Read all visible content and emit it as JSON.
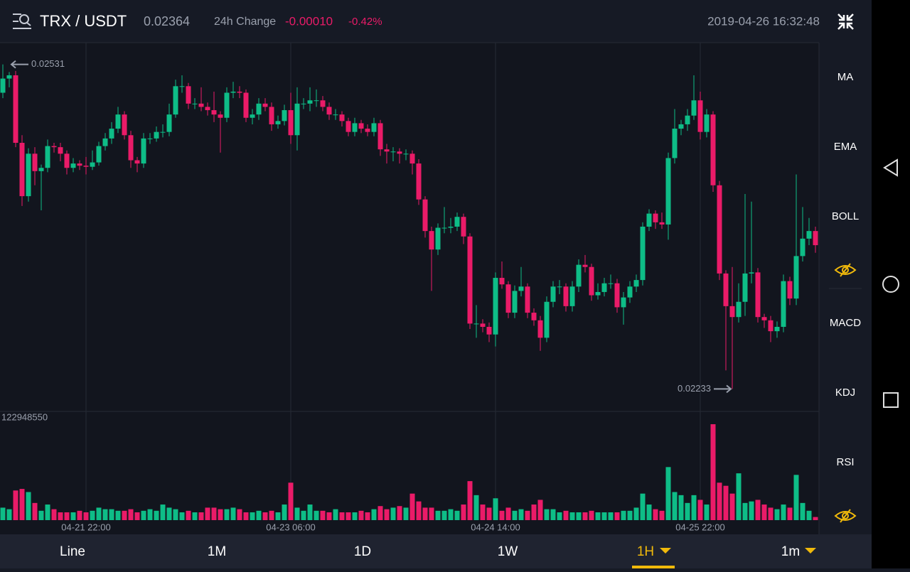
{
  "header": {
    "pair": "TRX / USDT",
    "price": "0.02364",
    "change_label": "24h Change",
    "change": "-0.00010",
    "change_pct": "-0.42%",
    "datetime": "2019-04-26 16:32:48"
  },
  "indicators": [
    "MA",
    "EMA",
    "BOLL",
    "MACD",
    "KDJ",
    "RSI"
  ],
  "timeframes": [
    "Line",
    "1M",
    "1D",
    "1W",
    "1H",
    "1m"
  ],
  "chart_data": {
    "type": "candlestick",
    "up_color": "#0ebd87",
    "down_color": "#ea1b68",
    "ylim": [
      0.02213,
      0.02551
    ],
    "volume_ylim": [
      0,
      138431000
    ],
    "high_marker": 0.02531,
    "low_marker": 0.02233,
    "categories": [
      null,
      null,
      null,
      null,
      null,
      null,
      null,
      null,
      null,
      null,
      null,
      null,
      null,
      "04-21 22:00",
      null,
      null,
      null,
      null,
      null,
      null,
      null,
      null,
      null,
      null,
      null,
      null,
      null,
      null,
      null,
      null,
      null,
      null,
      null,
      null,
      null,
      null,
      null,
      null,
      null,
      null,
      null,
      null,
      null,
      null,
      null,
      "04-23 06:00",
      null,
      null,
      null,
      null,
      null,
      null,
      null,
      null,
      null,
      null,
      null,
      null,
      null,
      null,
      null,
      null,
      null,
      null,
      null,
      null,
      null,
      null,
      null,
      null,
      null,
      null,
      null,
      null,
      null,
      null,
      null,
      "04-24 14:00",
      null,
      null,
      null,
      null,
      null,
      null,
      null,
      null,
      null,
      null,
      null,
      null,
      null,
      null,
      null,
      null,
      null,
      null,
      null,
      null,
      null,
      null,
      null,
      null,
      null,
      null,
      null,
      null,
      null,
      null,
      null,
      "04-25 22:00",
      null,
      null,
      null,
      null,
      null,
      null,
      null,
      null,
      null,
      null,
      null,
      null,
      null,
      null,
      null,
      null,
      null,
      null
    ],
    "ohlc": [
      [
        0.02505,
        0.02531,
        0.025,
        0.02518
      ],
      [
        0.02518,
        0.02524,
        0.0251,
        0.02521
      ],
      [
        0.02521,
        0.02525,
        0.02455,
        0.02459
      ],
      [
        0.02459,
        0.02466,
        0.02401,
        0.0241
      ],
      [
        0.0241,
        0.02454,
        0.02405,
        0.02449
      ],
      [
        0.02449,
        0.02455,
        0.0242,
        0.02433
      ],
      [
        0.02433,
        0.02439,
        0.02397,
        0.02436
      ],
      [
        0.02436,
        0.02462,
        0.02432,
        0.02456
      ],
      [
        0.02456,
        0.02459,
        0.0245,
        0.02455
      ],
      [
        0.02455,
        0.02459,
        0.02442,
        0.02449
      ],
      [
        0.02449,
        0.02452,
        0.0243,
        0.02436
      ],
      [
        0.02436,
        0.02445,
        0.02432,
        0.0244
      ],
      [
        0.0244,
        0.02443,
        0.02434,
        0.02438
      ],
      [
        0.02438,
        0.02446,
        0.0243,
        0.02437
      ],
      [
        0.02437,
        0.02452,
        0.02434,
        0.02441
      ],
      [
        0.02441,
        0.0246,
        0.02438,
        0.02456
      ],
      [
        0.02456,
        0.02468,
        0.02452,
        0.02463
      ],
      [
        0.02463,
        0.02478,
        0.02458,
        0.02472
      ],
      [
        0.02472,
        0.02492,
        0.02468,
        0.02485
      ],
      [
        0.02485,
        0.02488,
        0.02462,
        0.02466
      ],
      [
        0.02466,
        0.0247,
        0.02436,
        0.02443
      ],
      [
        0.02443,
        0.02446,
        0.02432,
        0.0244
      ],
      [
        0.0244,
        0.02468,
        0.02436,
        0.02463
      ],
      [
        0.02463,
        0.02468,
        0.02458,
        0.02463
      ],
      [
        0.02463,
        0.02474,
        0.0246,
        0.02469
      ],
      [
        0.02469,
        0.02476,
        0.02464,
        0.02469
      ],
      [
        0.02469,
        0.02495,
        0.02465,
        0.02485
      ],
      [
        0.02485,
        0.02517,
        0.02482,
        0.02511
      ],
      [
        0.02511,
        0.02521,
        0.02505,
        0.02511
      ],
      [
        0.02511,
        0.02514,
        0.0249,
        0.02495
      ],
      [
        0.02495,
        0.025,
        0.0249,
        0.02495
      ],
      [
        0.02495,
        0.0251,
        0.02488,
        0.02492
      ],
      [
        0.02492,
        0.02496,
        0.02484,
        0.02489
      ],
      [
        0.02489,
        0.02506,
        0.02478,
        0.02485
      ],
      [
        0.02485,
        0.02488,
        0.0245,
        0.02482
      ],
      [
        0.02482,
        0.0251,
        0.02478,
        0.02505
      ],
      [
        0.02505,
        0.02515,
        0.025,
        0.02506
      ],
      [
        0.02506,
        0.02511,
        0.025,
        0.02505
      ],
      [
        0.02505,
        0.02508,
        0.02478,
        0.02482
      ],
      [
        0.02482,
        0.0249,
        0.02476,
        0.02485
      ],
      [
        0.02485,
        0.025,
        0.0248,
        0.02495
      ],
      [
        0.02495,
        0.025,
        0.02488,
        0.02492
      ],
      [
        0.02492,
        0.02496,
        0.0247,
        0.02476
      ],
      [
        0.02476,
        0.02484,
        0.02472,
        0.02479
      ],
      [
        0.02479,
        0.02494,
        0.02475,
        0.02489
      ],
      [
        0.02489,
        0.02505,
        0.02458,
        0.02466
      ],
      [
        0.02466,
        0.0251,
        0.02452,
        0.02495
      ],
      [
        0.02495,
        0.025,
        0.0249,
        0.02495
      ],
      [
        0.02495,
        0.0251,
        0.02488,
        0.02498
      ],
      [
        0.02498,
        0.02508,
        0.02492,
        0.02498
      ],
      [
        0.02498,
        0.02502,
        0.02488,
        0.02492
      ],
      [
        0.02492,
        0.02496,
        0.0248,
        0.02485
      ],
      [
        0.02485,
        0.0249,
        0.0248,
        0.02485
      ],
      [
        0.02485,
        0.02488,
        0.02474,
        0.02479
      ],
      [
        0.02479,
        0.02482,
        0.02465,
        0.02469
      ],
      [
        0.02469,
        0.02482,
        0.02465,
        0.02477
      ],
      [
        0.02477,
        0.0248,
        0.02468,
        0.02472
      ],
      [
        0.02472,
        0.02476,
        0.02465,
        0.02469
      ],
      [
        0.02469,
        0.02482,
        0.02465,
        0.02477
      ],
      [
        0.02477,
        0.0248,
        0.02447,
        0.02453
      ],
      [
        0.02453,
        0.02458,
        0.0244,
        0.02451
      ],
      [
        0.02451,
        0.02455,
        0.02442,
        0.02451
      ],
      [
        0.02451,
        0.02454,
        0.0244,
        0.02449
      ],
      [
        0.02449,
        0.02453,
        0.02443,
        0.02449
      ],
      [
        0.02449,
        0.02452,
        0.0243,
        0.0244
      ],
      [
        0.0244,
        0.02444,
        0.02402,
        0.02407
      ],
      [
        0.02407,
        0.0241,
        0.02372,
        0.02378
      ],
      [
        0.02378,
        0.02382,
        0.02323,
        0.02361
      ],
      [
        0.02361,
        0.02385,
        0.02356,
        0.02381
      ],
      [
        0.02381,
        0.024,
        0.02376,
        0.02381
      ],
      [
        0.02381,
        0.0239,
        0.02376,
        0.02382
      ],
      [
        0.02382,
        0.02395,
        0.02378,
        0.02391
      ],
      [
        0.02391,
        0.02394,
        0.02366,
        0.02373
      ],
      [
        0.02373,
        0.02376,
        0.02288,
        0.02293
      ],
      [
        0.02293,
        0.0231,
        0.0228,
        0.02293
      ],
      [
        0.02293,
        0.02297,
        0.02285,
        0.0229
      ],
      [
        0.0229,
        0.02294,
        0.02276,
        0.02283
      ],
      [
        0.02283,
        0.0234,
        0.02272,
        0.02335
      ],
      [
        0.02335,
        0.0235,
        0.02325,
        0.02329
      ],
      [
        0.02329,
        0.02332,
        0.02298,
        0.02303
      ],
      [
        0.02303,
        0.02328,
        0.02298,
        0.02323
      ],
      [
        0.02323,
        0.02345,
        0.02318,
        0.02327
      ],
      [
        0.02327,
        0.0233,
        0.02298,
        0.02303
      ],
      [
        0.02303,
        0.02307,
        0.02291,
        0.02296
      ],
      [
        0.02296,
        0.023,
        0.02268,
        0.0228
      ],
      [
        0.0228,
        0.02318,
        0.02276,
        0.02313
      ],
      [
        0.02313,
        0.02332,
        0.02308,
        0.02327
      ],
      [
        0.02327,
        0.02333,
        0.0232,
        0.02327
      ],
      [
        0.02327,
        0.0233,
        0.02304,
        0.02309
      ],
      [
        0.02309,
        0.02332,
        0.02304,
        0.02327
      ],
      [
        0.02327,
        0.02352,
        0.02322,
        0.02347
      ],
      [
        0.02347,
        0.02356,
        0.0234,
        0.02345
      ],
      [
        0.02345,
        0.02348,
        0.02314,
        0.02319
      ],
      [
        0.02319,
        0.0233,
        0.02315,
        0.02322
      ],
      [
        0.02322,
        0.02335,
        0.02318,
        0.0233
      ],
      [
        0.0233,
        0.02338,
        0.02325,
        0.0233
      ],
      [
        0.0233,
        0.02334,
        0.02303,
        0.02308
      ],
      [
        0.02308,
        0.02322,
        0.02292,
        0.02317
      ],
      [
        0.02317,
        0.02332,
        0.02312,
        0.02327
      ],
      [
        0.02327,
        0.02338,
        0.02322,
        0.02333
      ],
      [
        0.02333,
        0.02386,
        0.02328,
        0.02382
      ],
      [
        0.02382,
        0.02398,
        0.02378,
        0.02394
      ],
      [
        0.02394,
        0.02397,
        0.0238,
        0.02386
      ],
      [
        0.02386,
        0.02395,
        0.0238,
        0.02384
      ],
      [
        0.02384,
        0.0245,
        0.0237,
        0.02445
      ],
      [
        0.02445,
        0.0249,
        0.0244,
        0.02472
      ],
      [
        0.02472,
        0.0248,
        0.02466,
        0.02476
      ],
      [
        0.02476,
        0.0249,
        0.0247,
        0.02484
      ],
      [
        0.02484,
        0.02521,
        0.0248,
        0.02498
      ],
      [
        0.02498,
        0.02506,
        0.02462,
        0.02469
      ],
      [
        0.02469,
        0.0249,
        0.02464,
        0.02485
      ],
      [
        0.02485,
        0.02488,
        0.02414,
        0.0242
      ],
      [
        0.0242,
        0.02424,
        0.02333,
        0.02339
      ],
      [
        0.02339,
        0.02342,
        0.0225,
        0.02309
      ],
      [
        0.02309,
        0.02345,
        0.02233,
        0.02299
      ],
      [
        0.02299,
        0.0233,
        0.02294,
        0.02313
      ],
      [
        0.02313,
        0.02412,
        0.023,
        0.02339
      ],
      [
        0.02339,
        0.02405,
        0.0233,
        0.0234
      ],
      [
        0.0234,
        0.02344,
        0.02294,
        0.02299
      ],
      [
        0.02299,
        0.02302,
        0.02289,
        0.02296
      ],
      [
        0.02296,
        0.023,
        0.02276,
        0.02286
      ],
      [
        0.02286,
        0.02295,
        0.0228,
        0.0229
      ],
      [
        0.0229,
        0.02338,
        0.02285,
        0.02332
      ],
      [
        0.02332,
        0.02336,
        0.0231,
        0.02316
      ],
      [
        0.02316,
        0.0243,
        0.0231,
        0.02355
      ],
      [
        0.02355,
        0.024,
        0.0235,
        0.02371
      ],
      [
        0.02371,
        0.0239,
        0.02365,
        0.02378
      ],
      [
        0.02378,
        0.02382,
        0.02358,
        0.02365
      ]
    ],
    "volume": [
      16000000,
      14000000,
      38000000,
      40000000,
      36000000,
      22000000,
      12000000,
      20000000,
      14000000,
      10000000,
      10000000,
      10000000,
      12000000,
      10000000,
      12000000,
      16000000,
      14000000,
      14000000,
      12000000,
      12000000,
      14000000,
      10000000,
      12000000,
      14000000,
      12000000,
      20000000,
      16000000,
      14000000,
      10000000,
      12000000,
      10000000,
      10000000,
      16000000,
      16000000,
      14000000,
      14000000,
      16000000,
      14000000,
      10000000,
      10000000,
      12000000,
      10000000,
      12000000,
      10000000,
      20000000,
      48000000,
      16000000,
      12000000,
      20000000,
      12000000,
      12000000,
      10000000,
      14000000,
      10000000,
      10000000,
      10000000,
      12000000,
      10000000,
      14000000,
      18000000,
      14000000,
      16000000,
      18000000,
      16000000,
      34000000,
      24000000,
      16000000,
      16000000,
      12000000,
      12000000,
      14000000,
      12000000,
      20000000,
      50000000,
      32000000,
      20000000,
      16000000,
      28000000,
      12000000,
      16000000,
      12000000,
      14000000,
      12000000,
      20000000,
      26000000,
      14000000,
      14000000,
      10000000,
      12000000,
      10000000,
      10000000,
      10000000,
      12000000,
      10000000,
      10000000,
      10000000,
      10000000,
      12000000,
      12000000,
      16000000,
      34000000,
      20000000,
      14000000,
      12000000,
      68000000,
      36000000,
      32000000,
      22000000,
      32000000,
      26000000,
      20000000,
      122948550,
      48000000,
      44000000,
      34000000,
      60000000,
      22000000,
      24000000,
      26000000,
      20000000,
      16000000,
      14000000,
      20000000,
      16000000,
      58000000,
      22000000,
      12000000,
      4000000
    ]
  }
}
